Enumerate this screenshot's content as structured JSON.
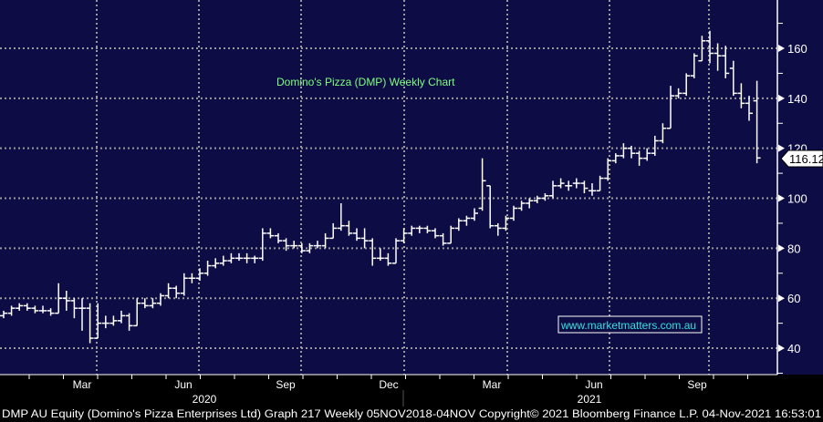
{
  "chart_data": {
    "type": "ohlc",
    "title": "Domino's Pizza (DMP) Weekly Chart",
    "ylabel": "",
    "xlabel": "",
    "ylim": [
      30,
      179
    ],
    "y_ticks": [
      40,
      60,
      80,
      100,
      120,
      140,
      160
    ],
    "x_tick_labels": [
      "Mar",
      "Jun",
      "Sep",
      "Dec",
      "Mar",
      "Jun",
      "Sep"
    ],
    "year_labels": [
      "2020",
      "2021"
    ],
    "grid": true,
    "last_price_label": "116.12",
    "last_price": 116.12,
    "colors": {
      "background": "#0d0c45",
      "bars": "#ffffff",
      "grid": "#9a9a9a",
      "title": "#7dff7d",
      "watermark": "#33e0e0"
    },
    "ohlc": [
      [
        53,
        55,
        52,
        54
      ],
      [
        54,
        57,
        53,
        56
      ],
      [
        56,
        58,
        55,
        57
      ],
      [
        57,
        58,
        55,
        56
      ],
      [
        56,
        57,
        54,
        55
      ],
      [
        55,
        57,
        54,
        55
      ],
      [
        55,
        56,
        53,
        54
      ],
      [
        54,
        66,
        54,
        60
      ],
      [
        60,
        63,
        55,
        59
      ],
      [
        59,
        60,
        52,
        56
      ],
      [
        56,
        60,
        47,
        56
      ],
      [
        56,
        58,
        42,
        44
      ],
      [
        44,
        58,
        44,
        50
      ],
      [
        50,
        53,
        48,
        50
      ],
      [
        50,
        53,
        49,
        51
      ],
      [
        51,
        55,
        50,
        53
      ],
      [
        53,
        54,
        47,
        49
      ],
      [
        49,
        60,
        49,
        58
      ],
      [
        58,
        60,
        56,
        57
      ],
      [
        57,
        60,
        56,
        58
      ],
      [
        58,
        62,
        57,
        61
      ],
      [
        61,
        66,
        60,
        64
      ],
      [
        64,
        65,
        60,
        62
      ],
      [
        62,
        70,
        61,
        68
      ],
      [
        68,
        70,
        66,
        68
      ],
      [
        68,
        72,
        67,
        70
      ],
      [
        70,
        75,
        69,
        73
      ],
      [
        73,
        76,
        72,
        74
      ],
      [
        74,
        77,
        73,
        75
      ],
      [
        75,
        78,
        74,
        76
      ],
      [
        76,
        78,
        75,
        76
      ],
      [
        76,
        78,
        74,
        76
      ],
      [
        76,
        77,
        74,
        76
      ],
      [
        76,
        88,
        75,
        86
      ],
      [
        86,
        88,
        84,
        85
      ],
      [
        85,
        86,
        82,
        83
      ],
      [
        83,
        84,
        79,
        81
      ],
      [
        81,
        83,
        80,
        81
      ],
      [
        81,
        82,
        78,
        79
      ],
      [
        79,
        82,
        78,
        81
      ],
      [
        81,
        83,
        80,
        81
      ],
      [
        81,
        86,
        80,
        84
      ],
      [
        84,
        90,
        84,
        88
      ],
      [
        88,
        98,
        87,
        89
      ],
      [
        89,
        91,
        85,
        86
      ],
      [
        86,
        88,
        83,
        84
      ],
      [
        84,
        88,
        80,
        83
      ],
      [
        83,
        84,
        73,
        76
      ],
      [
        76,
        80,
        75,
        76
      ],
      [
        76,
        78,
        73,
        74
      ],
      [
        74,
        84,
        74,
        83
      ],
      [
        83,
        88,
        82,
        86
      ],
      [
        86,
        89,
        85,
        88
      ],
      [
        88,
        89,
        86,
        88
      ],
      [
        88,
        89,
        86,
        87
      ],
      [
        87,
        88,
        84,
        85
      ],
      [
        85,
        86,
        81,
        82
      ],
      [
        82,
        89,
        82,
        88
      ],
      [
        88,
        92,
        87,
        91
      ],
      [
        91,
        93,
        89,
        92
      ],
      [
        92,
        96,
        91,
        94
      ],
      [
        96,
        116,
        95,
        107
      ],
      [
        105,
        105,
        88,
        89
      ],
      [
        89,
        90,
        85,
        88
      ],
      [
        88,
        93,
        87,
        92
      ],
      [
        92,
        97,
        91,
        96
      ],
      [
        96,
        99,
        95,
        98
      ],
      [
        98,
        100,
        96,
        99
      ],
      [
        99,
        101,
        98,
        100
      ],
      [
        100,
        102,
        99,
        101
      ],
      [
        101,
        107,
        100,
        105
      ],
      [
        105,
        108,
        104,
        106
      ],
      [
        105,
        107,
        103,
        105
      ],
      [
        106,
        108,
        104,
        106
      ],
      [
        106,
        107,
        102,
        104
      ],
      [
        103,
        106,
        101,
        103
      ],
      [
        103,
        109,
        103,
        108
      ],
      [
        108,
        116,
        107,
        115
      ],
      [
        115,
        118,
        114,
        117
      ],
      [
        117,
        122,
        116,
        120
      ],
      [
        120,
        121,
        116,
        118
      ],
      [
        118,
        119,
        113,
        116
      ],
      [
        116,
        120,
        115,
        118
      ],
      [
        118,
        125,
        117,
        123
      ],
      [
        123,
        130,
        122,
        128
      ],
      [
        128,
        145,
        128,
        141
      ],
      [
        141,
        144,
        140,
        142
      ],
      [
        142,
        150,
        141,
        149
      ],
      [
        149,
        158,
        148,
        157
      ],
      [
        155,
        165,
        155,
        163
      ],
      [
        163,
        167,
        154,
        158
      ],
      [
        158,
        162,
        151,
        157
      ],
      [
        157,
        161,
        148,
        150
      ],
      [
        152,
        155,
        141,
        142
      ],
      [
        142,
        146,
        136,
        138
      ],
      [
        138,
        141,
        131,
        134
      ],
      [
        139,
        147,
        114,
        116.12
      ]
    ]
  },
  "watermark": "www.marketmatters.com.au",
  "footer": "DMP AU Equity (Domino's Pizza Enterprises Ltd) Graph 217  Weekly 05NOV2018-04NOV Copyright© 2021 Bloomberg Finance L.P. 04-Nov-2021 16:53:01"
}
